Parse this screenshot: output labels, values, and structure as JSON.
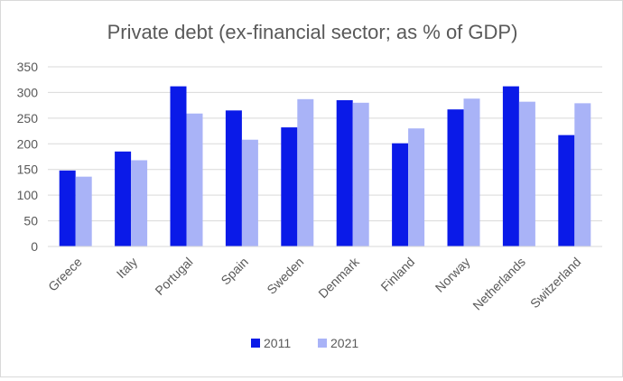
{
  "chart_data": {
    "type": "bar",
    "title": "Private debt (ex-financial sector; as % of GDP)",
    "xlabel": "",
    "ylabel": "",
    "ylim": [
      0,
      350
    ],
    "yticks": [
      0,
      50,
      100,
      150,
      200,
      250,
      300,
      350
    ],
    "grid": true,
    "legend_position": "bottom",
    "categories": [
      "Greece",
      "Italy",
      "Portugal",
      "Spain",
      "Sweden",
      "Denmark",
      "Finland",
      "Norway",
      "Netherlands",
      "Switzerland"
    ],
    "series": [
      {
        "name": "2011",
        "color": "#0A1AE8",
        "values": [
          148,
          185,
          312,
          265,
          232,
          285,
          201,
          267,
          312,
          217
        ]
      },
      {
        "name": "2021",
        "color": "#A9B3F7",
        "values": [
          136,
          168,
          259,
          208,
          287,
          280,
          230,
          288,
          282,
          279
        ]
      }
    ]
  }
}
